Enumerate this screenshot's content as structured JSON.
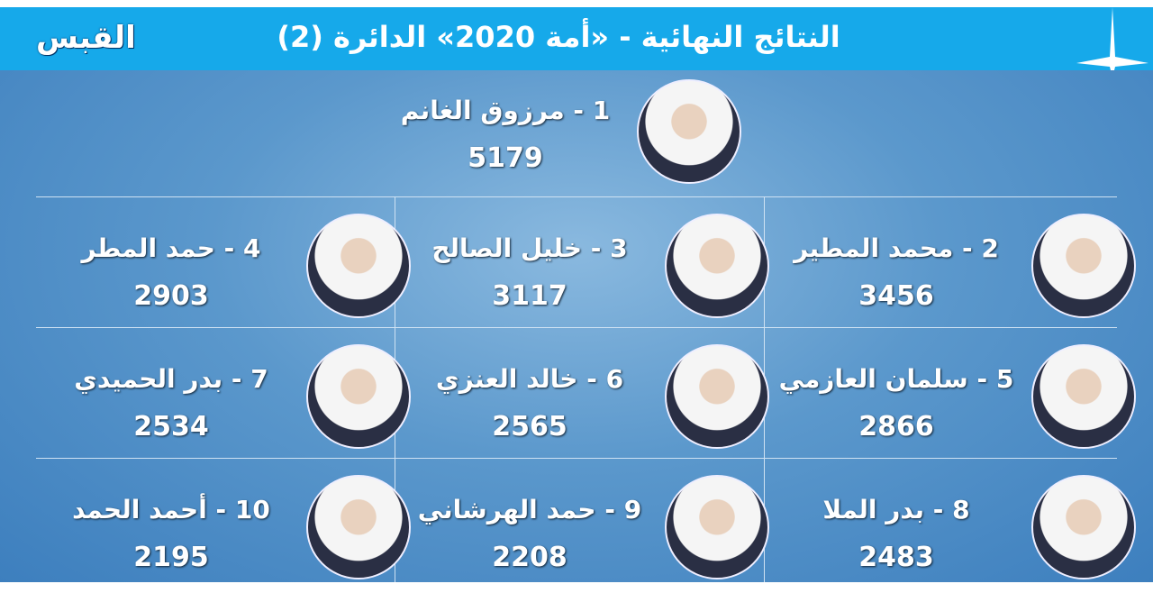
{
  "header": {
    "title": "النتائج النهائية - «أمة 2020» الدائرة (2)",
    "logo_text": "القبس",
    "accent": "#16a9ea"
  },
  "candidates": [
    {
      "rank": "1",
      "name": "1 - مرزوق الغانم",
      "votes": "5179"
    },
    {
      "rank": "2",
      "name": "2 - محمد المطير",
      "votes": "3456"
    },
    {
      "rank": "3",
      "name": "3 - خليل الصالح",
      "votes": "3117"
    },
    {
      "rank": "4",
      "name": "4 - حمد المطر",
      "votes": "2903"
    },
    {
      "rank": "5",
      "name": "5 - سلمان العازمي",
      "votes": "2866"
    },
    {
      "rank": "6",
      "name": "6 - خالد العنزي",
      "votes": "2565"
    },
    {
      "rank": "7",
      "name": "7 - بدر الحميدي",
      "votes": "2534"
    },
    {
      "rank": "8",
      "name": "8 - بدر الملا",
      "votes": "2483"
    },
    {
      "rank": "9",
      "name": "9 - حمد الهرشاني",
      "votes": "2208"
    },
    {
      "rank": "10",
      "name": "10 - أحمد الحمد",
      "votes": "2195"
    }
  ]
}
